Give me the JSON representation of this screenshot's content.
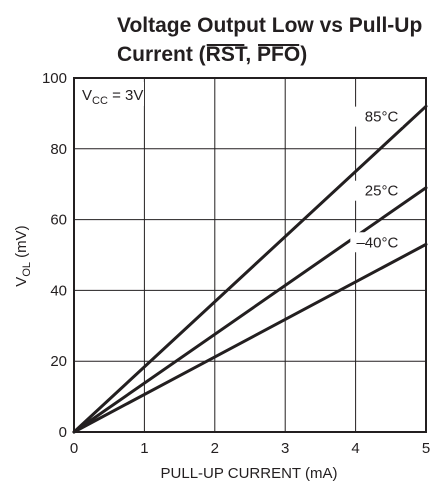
{
  "chart_data": {
    "type": "line",
    "title_line1": "Voltage Output Low vs Pull-Up",
    "title_line2_prefix": "Current (",
    "title_rst": "RST",
    "title_sep": ", ",
    "title_pfo": "PFO",
    "title_line2_suffix": ")",
    "xlabel": "PULL-UP CURRENT (mA)",
    "ylabel_main": "V",
    "ylabel_sub": "OL",
    "ylabel_unit": " (mV)",
    "xlim": [
      0,
      5
    ],
    "ylim": [
      0,
      100
    ],
    "x_ticks": [
      "0",
      "1",
      "2",
      "3",
      "4",
      "5"
    ],
    "y_ticks": [
      "0",
      "20",
      "40",
      "60",
      "80",
      "100"
    ],
    "grid": true,
    "condition_main": "V",
    "condition_sub": "CC",
    "condition_rest": " = 3V",
    "series": [
      {
        "name": "85°C",
        "x": [
          0,
          5
        ],
        "y": [
          0,
          92
        ]
      },
      {
        "name": "25°C",
        "x": [
          0,
          5
        ],
        "y": [
          0,
          69
        ]
      },
      {
        "name": "–40°C",
        "x": [
          0,
          5
        ],
        "y": [
          0,
          53
        ]
      }
    ],
    "line_color": "#231f20"
  }
}
